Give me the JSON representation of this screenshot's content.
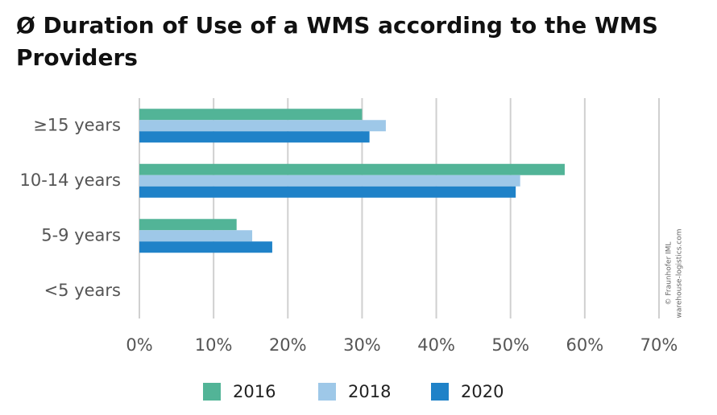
{
  "chart_data": {
    "type": "bar",
    "orientation": "horizontal",
    "title": "Ø Duration of Use of a WMS according to the WMS Providers",
    "categories": [
      "≥15 years",
      "10-14 years",
      "5-9 years",
      "<5 years"
    ],
    "series": [
      {
        "name": "2016",
        "color": "#52b497",
        "values": [
          30,
          57.3,
          13.1,
          0
        ]
      },
      {
        "name": "2018",
        "color": "#9ec8e8",
        "values": [
          33.2,
          51.3,
          15.2,
          0
        ]
      },
      {
        "name": "2020",
        "color": "#1f82c8",
        "values": [
          31,
          50.7,
          17.9,
          0
        ]
      }
    ],
    "xlim": [
      0,
      70
    ],
    "xticks": [
      {
        "value": 0,
        "label": "0%"
      },
      {
        "value": 10,
        "label": "10%"
      },
      {
        "value": 20,
        "label": "20%"
      },
      {
        "value": 30,
        "label": "30%"
      },
      {
        "value": 40,
        "label": "40%"
      },
      {
        "value": 50,
        "label": "50%"
      },
      {
        "value": 60,
        "label": "60%"
      },
      {
        "value": 70,
        "label": "70%"
      }
    ],
    "grid": true,
    "legend": "bottom",
    "annotations": [
      "© Fraunhofer IML",
      "warehouse-logistics.com"
    ]
  }
}
